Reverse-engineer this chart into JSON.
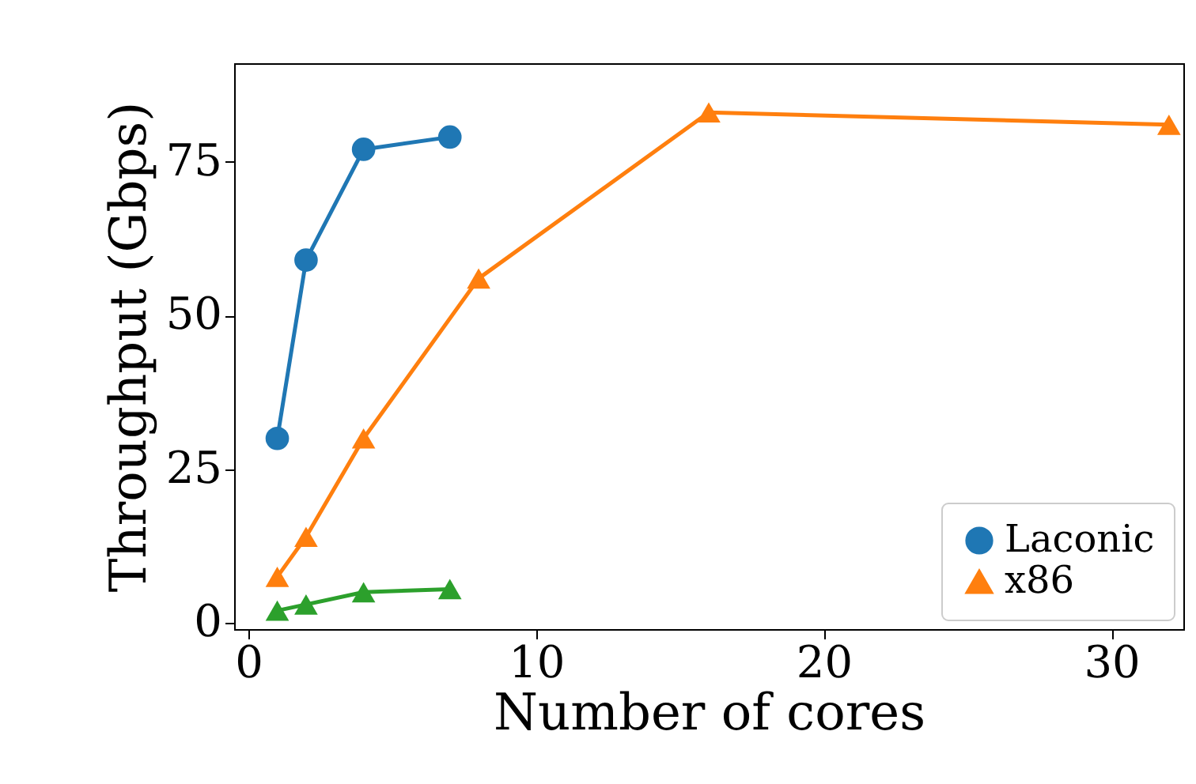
{
  "chart_data": {
    "type": "line",
    "xlabel": "Number of cores",
    "ylabel": "Throughput (Gbps)",
    "xlim": [
      -0.5,
      32.5
    ],
    "xticks": [
      0,
      10,
      20,
      30
    ],
    "ylim": [
      -1,
      91
    ],
    "yticks": [
      0,
      25,
      50,
      75
    ],
    "grid": false,
    "legend": "bottom right",
    "series": [
      {
        "name": "Laconic",
        "color": "#1f77b4",
        "marker": "circle",
        "x": [
          1,
          2,
          4,
          7
        ],
        "values": [
          30,
          59,
          77,
          79
        ]
      },
      {
        "name": "x86",
        "color": "#ff7f0e",
        "marker": "triangle",
        "x": [
          1,
          2,
          4,
          8,
          16,
          32
        ],
        "values": [
          7.5,
          14,
          30,
          56,
          83,
          81
        ]
      },
      {
        "color": "#2ca02c",
        "marker": "triangle",
        "x": [
          1,
          2,
          4,
          7
        ],
        "values": [
          2,
          3,
          5,
          5.5
        ]
      }
    ]
  }
}
